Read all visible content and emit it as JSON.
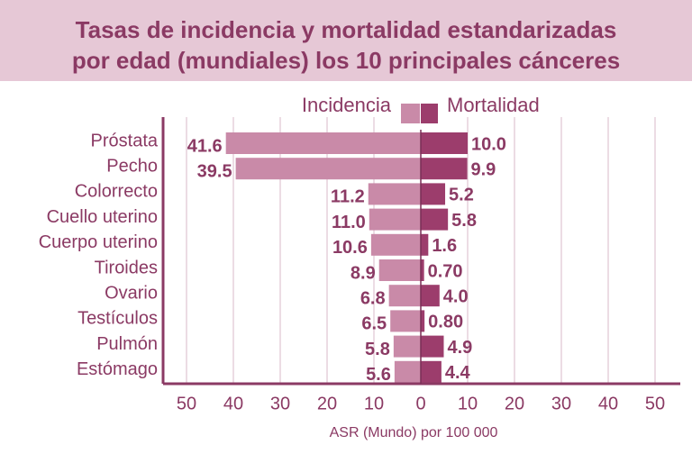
{
  "chart_data": {
    "type": "bar",
    "title_lines": [
      "Tasas de incidencia y mortalidad estandarizadas",
      "por edad (mundiales) los 10 principales cánceres"
    ],
    "xlabel": "ASR  (Mundo) por 100 000",
    "xlim": [
      -50,
      50
    ],
    "xticks": [
      "50",
      "40",
      "30",
      "20",
      "10",
      "0",
      "10",
      "20",
      "30",
      "40",
      "50"
    ],
    "legend": {
      "placement": "top-center",
      "left_label": "Incidencia",
      "right_label": "Mortalidad"
    },
    "categories": [
      "Próstata",
      "Pecho",
      "Colorrecto",
      "Cuello uterino",
      "Cuerpo uterino",
      "Tiroides",
      "Ovario",
      "Testículos",
      "Pulmón",
      "Estómago"
    ],
    "series": [
      {
        "name": "Incidencia",
        "direction": "left",
        "color": "#c98aa8",
        "values": [
          41.6,
          39.5,
          11.2,
          11.0,
          10.6,
          8.9,
          6.8,
          6.5,
          5.8,
          5.6
        ],
        "labels": [
          "41.6",
          "39.5",
          "11.2",
          "11.0",
          "10.6",
          "8.9",
          "6.8",
          "6.5",
          "5.8",
          "5.6"
        ]
      },
      {
        "name": "Mortalidad",
        "direction": "right",
        "color": "#9c3d6c",
        "values": [
          10.0,
          9.9,
          5.2,
          5.8,
          1.6,
          0.7,
          4.0,
          0.8,
          4.9,
          4.4
        ],
        "labels": [
          "10.0",
          "9.9",
          "5.2",
          "5.8",
          "1.6",
          "0.70",
          "4.0",
          "0.80",
          "4.9",
          "4.4"
        ]
      }
    ],
    "grid": true,
    "colors": {
      "title": "#8b3a64",
      "title_band": "#e6c8d6",
      "axis": "#8b3a64",
      "grid": "#d9b9c8",
      "label": "#8b3a64"
    }
  }
}
